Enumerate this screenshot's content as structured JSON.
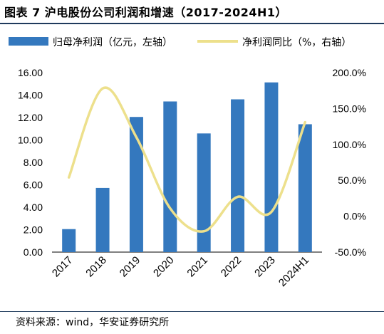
{
  "title": "图表 7 沪电股份公司利润和增速（2017-2024H1）",
  "source": "资料来源：wind，华安证券研究所",
  "colors": {
    "bar": "#3478be",
    "line": "#ede08c",
    "rule": "#1f3a5c"
  },
  "chart_data": {
    "type": "bar+line",
    "categories": [
      "2017",
      "2018",
      "2019",
      "2020",
      "2021",
      "2022",
      "2023",
      "2024H1"
    ],
    "series": [
      {
        "name": "归母净利润（亿元，左轴）",
        "type": "bar",
        "axis": "left",
        "values": [
          2.05,
          5.72,
          12.05,
          13.43,
          10.58,
          13.62,
          15.13,
          11.4
        ]
      },
      {
        "name": "净利润同比（%，右轴）",
        "type": "line",
        "axis": "right",
        "values": [
          54,
          178,
          110,
          11,
          -21,
          27,
          6,
          131
        ]
      }
    ],
    "left_axis": {
      "min": 0,
      "max": 16,
      "step": 2,
      "tick_labels": [
        "0.00",
        "2.00",
        "4.00",
        "6.00",
        "8.00",
        "10.00",
        "12.00",
        "14.00",
        "16.00"
      ]
    },
    "right_axis": {
      "min": -50,
      "max": 200,
      "step": 50,
      "tick_labels": [
        "-50.0%",
        "0.0%",
        "50.0%",
        "100.0%",
        "150.0%",
        "200.0%"
      ]
    },
    "legend_position": "top",
    "grid": false
  }
}
